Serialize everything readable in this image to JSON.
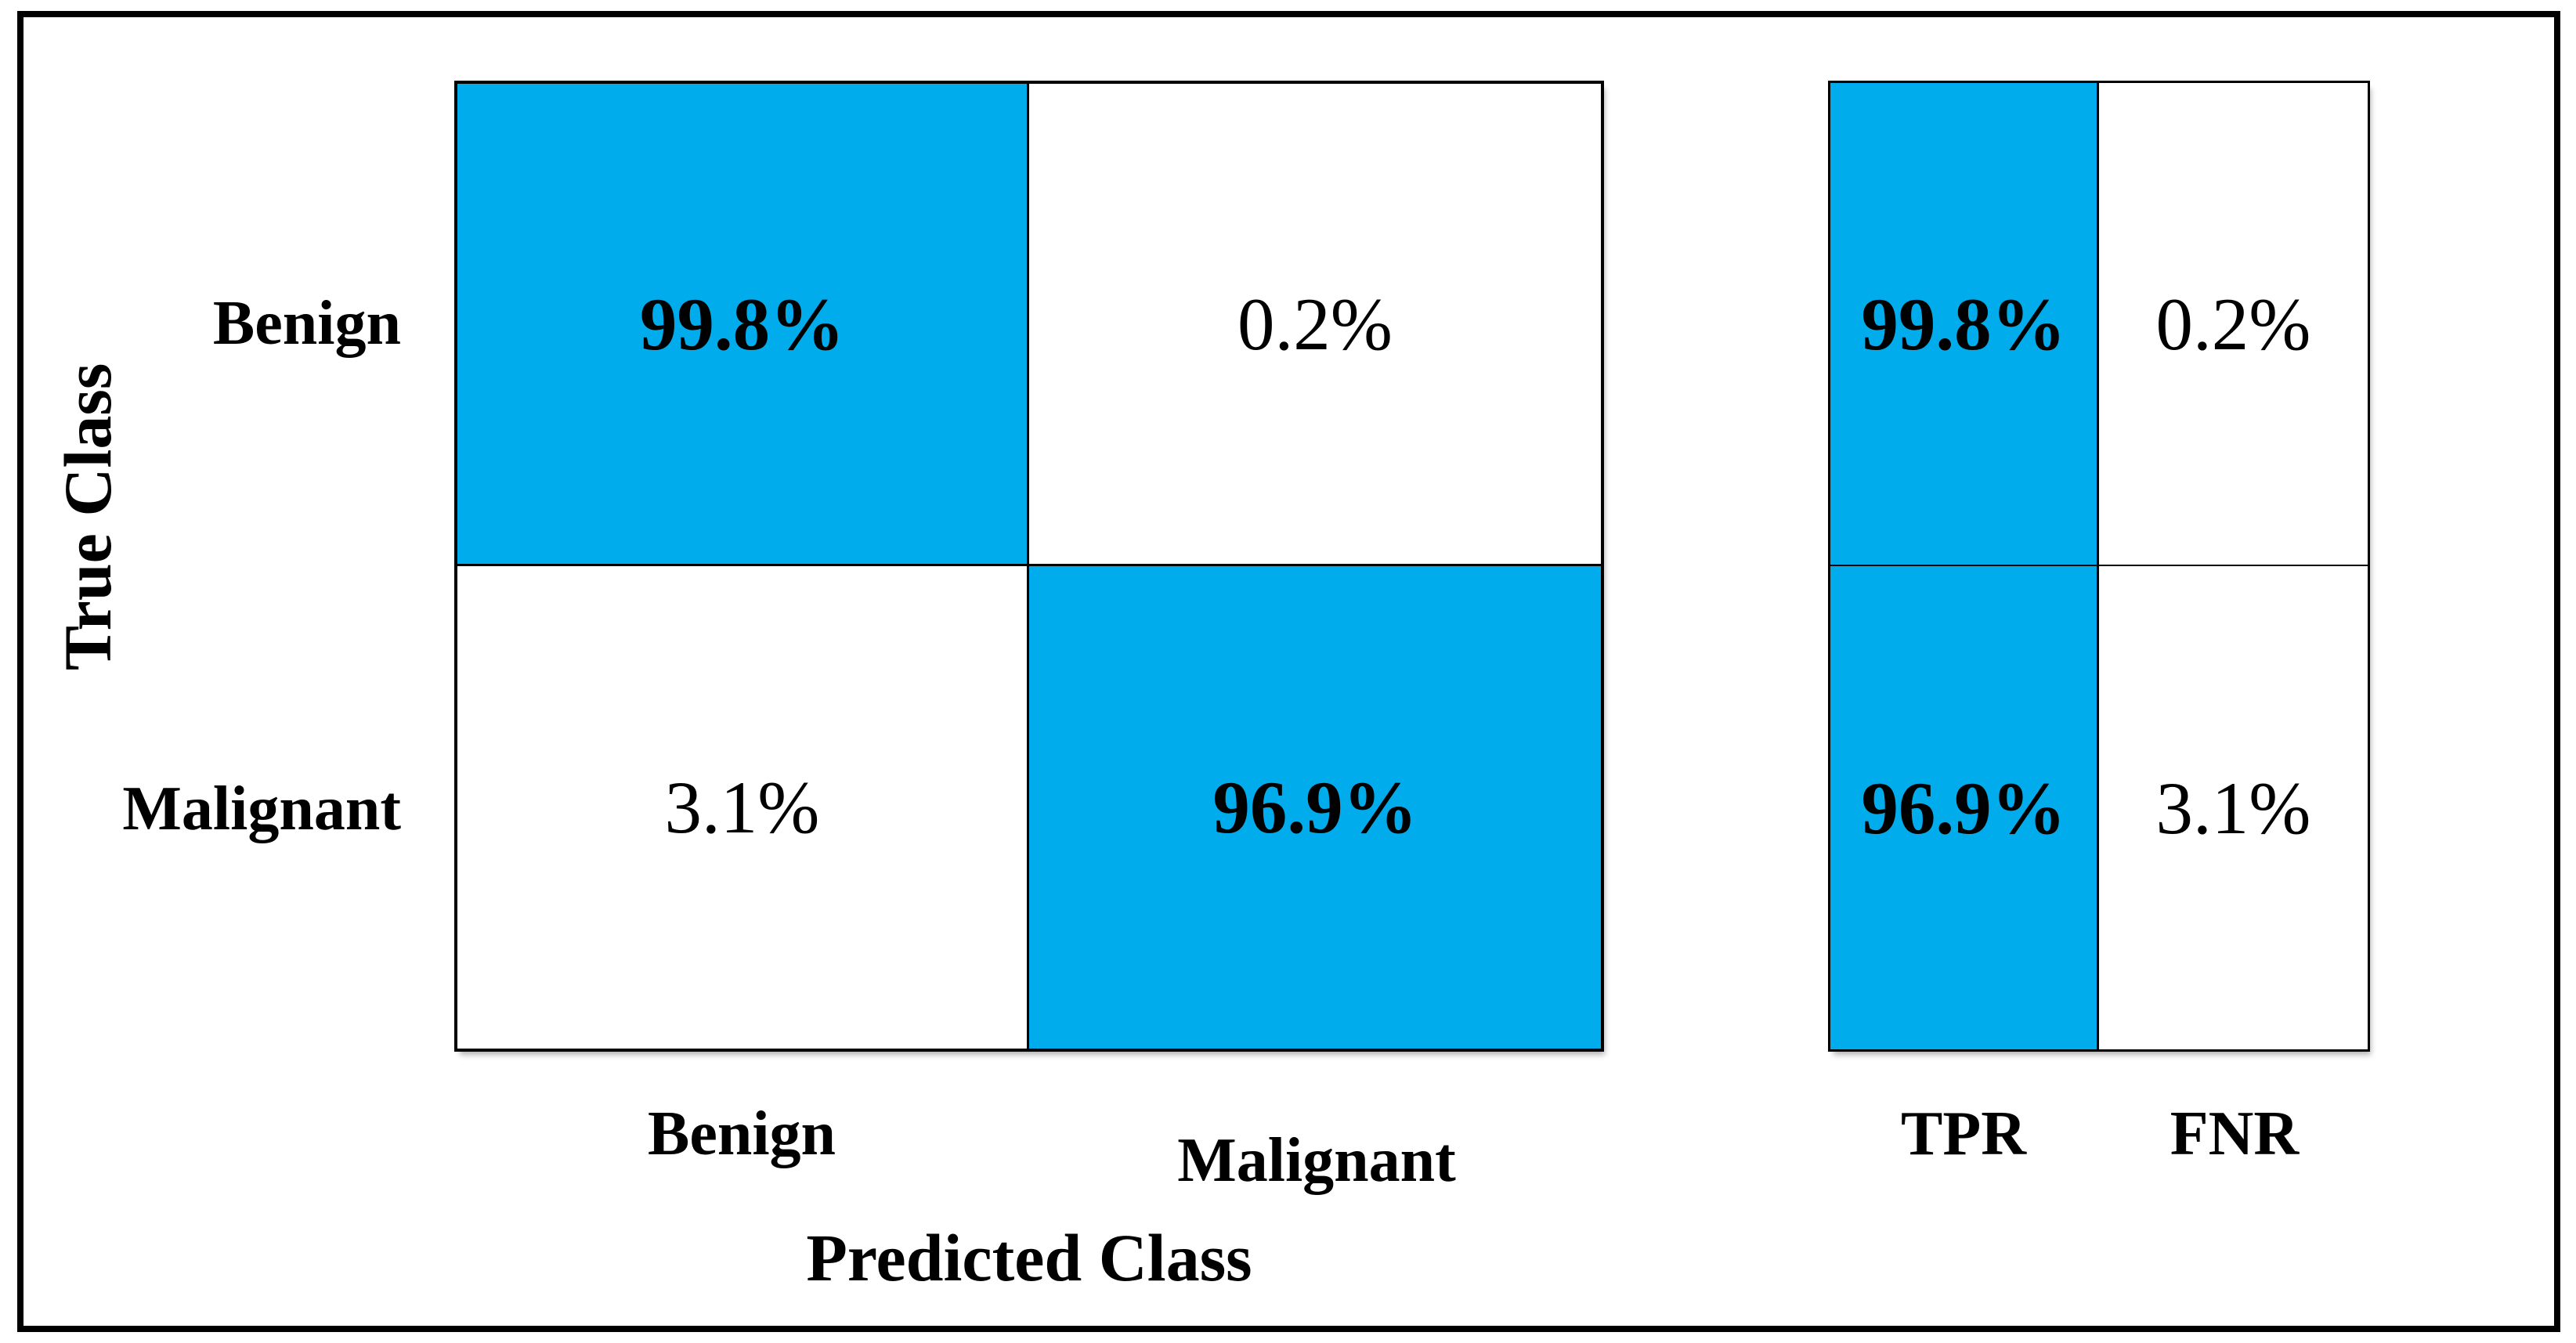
{
  "chart_data": {
    "type": "heatmap",
    "subtype": "confusion-matrix",
    "title": "",
    "xlabel": "Predicted Class",
    "ylabel": "True Class",
    "classes": [
      "Benign",
      "Malignant"
    ],
    "matrix_percent": [
      [
        99.8,
        0.2
      ],
      [
        3.1,
        96.9
      ]
    ],
    "cells": {
      "benign_benign": "99.8%",
      "benign_malignant": "0.2%",
      "malignant_benign": "3.1%",
      "malignant_malignant": "96.9%"
    },
    "summary_columns": [
      "TPR",
      "FNR"
    ],
    "summary_percent": [
      [
        99.8,
        0.2
      ],
      [
        96.9,
        3.1
      ]
    ],
    "summary": {
      "benign_tpr": "99.8%",
      "benign_fnr": "0.2%",
      "malignant_tpr": "96.9%",
      "malignant_fnr": "3.1%"
    },
    "colors": {
      "highlight": "#00ACEC",
      "cell_background": "#ffffff",
      "text": "#000000",
      "border": "#000000"
    },
    "layout": {
      "legend": "none",
      "grid": "on",
      "highlighted_cells": [
        "benign_benign",
        "malignant_malignant",
        "benign_tpr",
        "malignant_tpr"
      ]
    }
  }
}
